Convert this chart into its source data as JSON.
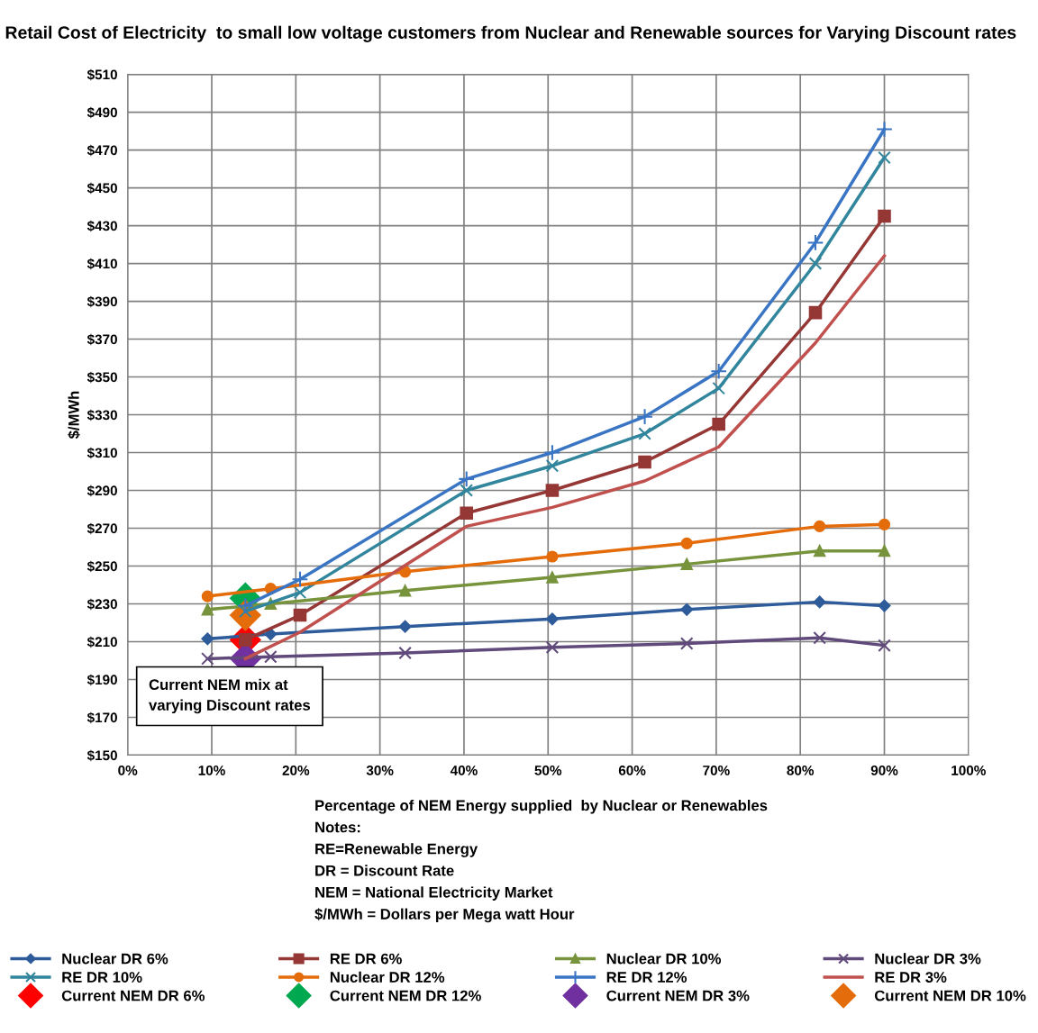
{
  "chart_data": {
    "type": "line",
    "title": "Retail Cost of Electricity  to small low voltage customers from Nuclear and Renewable sources for Varying Discount rates",
    "xlabel": "Percentage of NEM Energy supplied  by Nuclear or Renewables",
    "ylabel": "$/MWh",
    "xlim": [
      0,
      100
    ],
    "xticks": [
      {
        "value": 0,
        "label": "0%"
      },
      {
        "value": 10,
        "label": "10%"
      },
      {
        "value": 20,
        "label": "20%"
      },
      {
        "value": 30,
        "label": "30%"
      },
      {
        "value": 40,
        "label": "40%"
      },
      {
        "value": 50,
        "label": "50%"
      },
      {
        "value": 60,
        "label": "60%"
      },
      {
        "value": 70,
        "label": "70%"
      },
      {
        "value": 80,
        "label": "80%"
      },
      {
        "value": 90,
        "label": "90%"
      },
      {
        "value": 100,
        "label": "100%"
      }
    ],
    "ylim": [
      150,
      510
    ],
    "yticks": [
      {
        "value": 150,
        "label": "$150"
      },
      {
        "value": 170,
        "label": "$170"
      },
      {
        "value": 190,
        "label": "$190"
      },
      {
        "value": 210,
        "label": "$210"
      },
      {
        "value": 230,
        "label": "$230"
      },
      {
        "value": 250,
        "label": "$250"
      },
      {
        "value": 270,
        "label": "$270"
      },
      {
        "value": 290,
        "label": "$290"
      },
      {
        "value": 310,
        "label": "$310"
      },
      {
        "value": 330,
        "label": "$330"
      },
      {
        "value": 350,
        "label": "$350"
      },
      {
        "value": 370,
        "label": "$370"
      },
      {
        "value": 390,
        "label": "$390"
      },
      {
        "value": 410,
        "label": "$410"
      },
      {
        "value": 430,
        "label": "$430"
      },
      {
        "value": 450,
        "label": "$450"
      },
      {
        "value": 470,
        "label": "$470"
      },
      {
        "value": 490,
        "label": "$490"
      },
      {
        "value": 510,
        "label": "$510"
      }
    ],
    "grid": true,
    "legend": "bottom",
    "series": [
      {
        "name": "Nuclear DR 6%",
        "color": "#2e5b9a",
        "marker": "diamond",
        "x": [
          9.5,
          17,
          33,
          50.5,
          66.5,
          82.3,
          90
        ],
        "values": [
          211.5,
          214,
          218,
          222,
          227,
          231,
          229
        ]
      },
      {
        "name": "RE DR 6%",
        "color": "#953735",
        "marker": "square",
        "x": [
          14,
          20.5,
          40.3,
          50.5,
          61.5,
          70.3,
          81.8,
          90
        ],
        "values": [
          211,
          224,
          278,
          290,
          305,
          325,
          384,
          435
        ]
      },
      {
        "name": "Nuclear DR 10%",
        "color": "#77933c",
        "marker": "triangle",
        "x": [
          9.5,
          17,
          33,
          50.5,
          66.5,
          82.3,
          90
        ],
        "values": [
          227,
          230,
          237,
          244,
          251,
          258,
          258
        ]
      },
      {
        "name": "Nuclear DR 3%",
        "color": "#604a7b",
        "marker": "cross",
        "x": [
          9.5,
          17,
          33,
          50.5,
          66.5,
          82.3,
          90
        ],
        "values": [
          201,
          202,
          204,
          207,
          209,
          212,
          208
        ]
      },
      {
        "name": "RE DR 10%",
        "color": "#31859c",
        "marker": "cross",
        "x": [
          14,
          20.5,
          40.3,
          50.5,
          61.5,
          70.3,
          81.8,
          90
        ],
        "values": [
          226,
          236,
          290,
          303,
          320,
          344,
          410,
          466
        ]
      },
      {
        "name": "Nuclear DR 12%",
        "color": "#e46c0a",
        "marker": "circle",
        "x": [
          9.5,
          17,
          33,
          50.5,
          66.5,
          82.3,
          90
        ],
        "values": [
          234,
          238,
          247,
          255,
          262,
          271,
          272
        ]
      },
      {
        "name": "RE DR 12%",
        "color": "#3a75c4",
        "marker": "plus",
        "x": [
          14,
          20.5,
          40.3,
          50.5,
          61.5,
          70.3,
          81.8,
          90
        ],
        "values": [
          229,
          243,
          296,
          310,
          329,
          353,
          421,
          481
        ]
      },
      {
        "name": "RE DR 3%",
        "color": "#c0504d",
        "marker": "none",
        "x": [
          14,
          20.5,
          40.3,
          50.5,
          61.5,
          70.3,
          81.8,
          90
        ],
        "values": [
          201,
          215,
          271,
          281,
          295,
          313,
          368,
          414
        ]
      },
      {
        "name": "Current NEM DR 6%",
        "type": "scatter",
        "color": "#ff0000",
        "marker": "diamond",
        "x": [
          14
        ],
        "values": [
          211
        ]
      },
      {
        "name": "Current NEM DR 12%",
        "type": "scatter",
        "color": "#00a84f",
        "marker": "diamond",
        "x": [
          14
        ],
        "values": [
          233
        ]
      },
      {
        "name": "Current NEM DR 3%",
        "type": "scatter",
        "color": "#7030a0",
        "marker": "diamond",
        "x": [
          14
        ],
        "values": [
          201
        ]
      },
      {
        "name": "Current NEM DR 10%",
        "type": "scatter",
        "color": "#e46c0a",
        "marker": "diamond",
        "x": [
          14
        ],
        "values": [
          224
        ]
      }
    ],
    "annotations": [
      "Current NEM mix at\nvarying Discount rates",
      "Notes:",
      "RE=Renewable Energy",
      "DR = Discount Rate",
      "NEM = National Electricity Market",
      "$/MWh = Dollars per Mega watt Hour"
    ]
  }
}
